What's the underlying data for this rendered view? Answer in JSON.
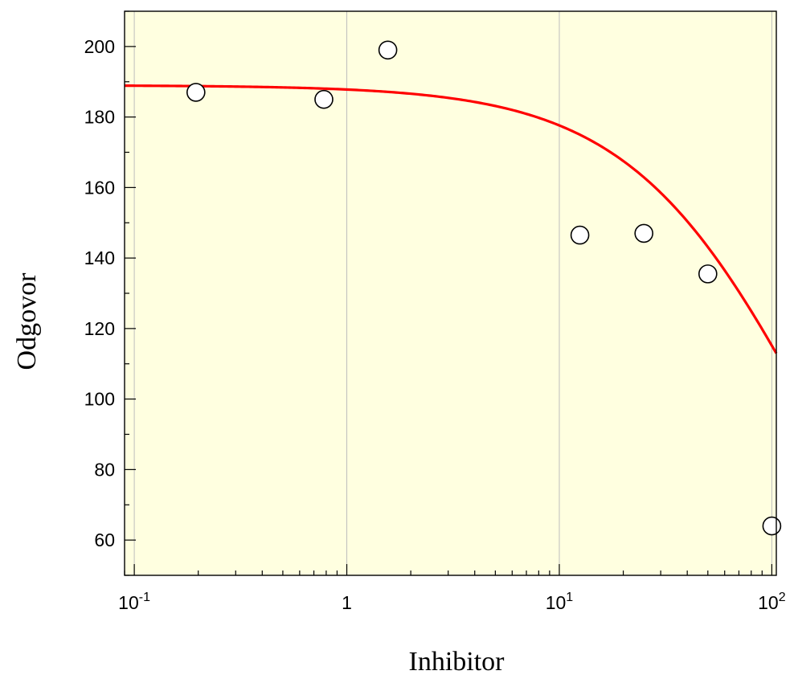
{
  "chart_data": {
    "type": "scatter",
    "xlabel": "Inhibitor",
    "ylabel": "Odgovor",
    "xscale": "log",
    "xlim": [
      0.09,
      105
    ],
    "ylim": [
      50,
      210
    ],
    "grid": {
      "x_major": true,
      "y_major": false
    },
    "x_tick_labels": [
      {
        "value": 0.1,
        "base": "10",
        "exp": "-1"
      },
      {
        "value": 1,
        "base": "1",
        "exp": ""
      },
      {
        "value": 10,
        "base": "10",
        "exp": "1"
      },
      {
        "value": 100,
        "base": "10",
        "exp": "2"
      }
    ],
    "y_ticks": [
      60,
      80,
      100,
      120,
      140,
      160,
      180,
      200
    ],
    "y_minor_step": 10,
    "series": [
      {
        "kind": "points",
        "x": [
          0.195,
          0.78,
          1.56,
          12.5,
          25,
          50,
          100
        ],
        "y": [
          187,
          185,
          199,
          146.5,
          147,
          135.5,
          64
        ]
      },
      {
        "kind": "fitted-curve",
        "model": "hyperbolic-inhibition",
        "params": {
          "top": 189,
          "ic50": 156
        },
        "x_range": [
          0.09,
          105
        ]
      }
    ],
    "colors": {
      "plot_background": "#ffffe0",
      "curve": "#ff0000",
      "marker_fill": "#ffffff",
      "marker_stroke": "#000000",
      "grid": "#bdbdbd",
      "axis": "#000000"
    }
  }
}
